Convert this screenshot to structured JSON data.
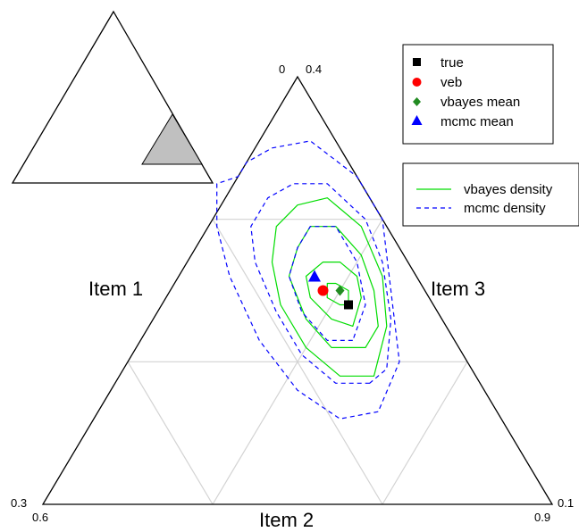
{
  "chart_data": {
    "type": "scatter",
    "subtype": "ternary",
    "axes": {
      "left": {
        "label": "Item 1"
      },
      "bottom": {
        "label": "Item 2"
      },
      "right": {
        "label": "Item 3"
      }
    },
    "corner_labels": {
      "top": [
        "0",
        "0.4"
      ],
      "bottom_left": [
        "0.3",
        "0.6"
      ],
      "bottom_right": [
        "0.1",
        "0.9"
      ]
    },
    "ranges": {
      "item1": [
        0,
        0.3
      ],
      "item2": [
        0.6,
        0.9
      ],
      "item3": [
        0.1,
        0.4
      ]
    },
    "grid": true,
    "points": [
      {
        "name": "true",
        "item1": 0.05,
        "item2": 0.71,
        "item3": 0.24,
        "marker": "square",
        "color": "#000000"
      },
      {
        "name": "veb",
        "item1": 0.06,
        "item2": 0.69,
        "item3": 0.25,
        "marker": "circle",
        "color": "#ff0000"
      },
      {
        "name": "vbayes mean",
        "item1": 0.05,
        "item2": 0.7,
        "item3": 0.25,
        "marker": "diamond",
        "color": "#228b22"
      },
      {
        "name": "mcmc mean",
        "item1": 0.06,
        "item2": 0.68,
        "item3": 0.26,
        "marker": "triangle",
        "color": "#0000ff"
      }
    ],
    "densities": [
      {
        "name": "vbayes density",
        "color": "#00dd00",
        "style": "solid",
        "contours": [
          [
            [
              0.055,
              0.705,
              0.24
            ],
            [
              0.06,
              0.695,
              0.245
            ],
            [
              0.055,
              0.69,
              0.255
            ],
            [
              0.05,
              0.695,
              0.255
            ],
            [
              0.045,
              0.705,
              0.25
            ],
            [
              0.05,
              0.71,
              0.24
            ]
          ],
          [
            [
              0.055,
              0.72,
              0.225
            ],
            [
              0.065,
              0.705,
              0.23
            ],
            [
              0.07,
              0.685,
              0.245
            ],
            [
              0.065,
              0.675,
              0.26
            ],
            [
              0.05,
              0.68,
              0.27
            ],
            [
              0.04,
              0.69,
              0.27
            ],
            [
              0.035,
              0.705,
              0.26
            ],
            [
              0.04,
              0.715,
              0.245
            ]
          ],
          [
            [
              0.055,
              0.735,
              0.21
            ],
            [
              0.075,
              0.715,
              0.21
            ],
            [
              0.08,
              0.69,
              0.23
            ],
            [
              0.075,
              0.665,
              0.26
            ],
            [
              0.06,
              0.66,
              0.28
            ],
            [
              0.045,
              0.66,
              0.295
            ],
            [
              0.03,
              0.675,
              0.295
            ],
            [
              0.025,
              0.7,
              0.275
            ],
            [
              0.03,
              0.72,
              0.25
            ],
            [
              0.04,
              0.735,
              0.225
            ]
          ],
          [
            [
              0.06,
              0.75,
              0.19
            ],
            [
              0.08,
              0.73,
              0.19
            ],
            [
              0.09,
              0.7,
              0.21
            ],
            [
              0.09,
              0.67,
              0.24
            ],
            [
              0.08,
              0.65,
              0.27
            ],
            [
              0.065,
              0.64,
              0.295
            ],
            [
              0.045,
              0.645,
              0.31
            ],
            [
              0.025,
              0.66,
              0.315
            ],
            [
              0.015,
              0.69,
              0.295
            ],
            [
              0.02,
              0.72,
              0.26
            ],
            [
              0.035,
              0.74,
              0.225
            ]
          ]
        ]
      },
      {
        "name": "mcmc density",
        "color": "#0000ff",
        "style": "dashed",
        "contours": [
          [
            [
              0.06,
              0.725,
              0.215
            ],
            [
              0.075,
              0.71,
              0.215
            ],
            [
              0.08,
              0.685,
              0.235
            ],
            [
              0.075,
              0.665,
              0.26
            ],
            [
              0.06,
              0.66,
              0.28
            ],
            [
              0.045,
              0.66,
              0.295
            ],
            [
              0.03,
              0.675,
              0.295
            ],
            [
              0.03,
              0.7,
              0.27
            ],
            [
              0.04,
              0.72,
              0.24
            ]
          ],
          [
            [
              0.065,
              0.75,
              0.185
            ],
            [
              0.085,
              0.73,
              0.185
            ],
            [
              0.095,
              0.7,
              0.205
            ],
            [
              0.095,
              0.67,
              0.235
            ],
            [
              0.09,
              0.64,
              0.27
            ],
            [
              0.08,
              0.625,
              0.295
            ],
            [
              0.06,
              0.625,
              0.315
            ],
            [
              0.04,
              0.635,
              0.325
            ],
            [
              0.02,
              0.655,
              0.325
            ],
            [
              0.01,
              0.69,
              0.3
            ],
            [
              0.015,
              0.715,
              0.27
            ],
            [
              0.03,
              0.74,
              0.23
            ],
            [
              0.05,
              0.755,
              0.195
            ]
          ],
          [
            [
              0.07,
              0.765,
              0.165
            ],
            [
              0.095,
              0.745,
              0.16
            ],
            [
              0.11,
              0.71,
              0.18
            ],
            [
              0.115,
              0.67,
              0.215
            ],
            [
              0.11,
              0.63,
              0.26
            ],
            [
              0.1,
              0.605,
              0.295
            ],
            [
              0.085,
              0.59,
              0.325
            ],
            [
              0.07,
              0.6,
              0.33
            ],
            [
              0.06,
              0.6,
              0.34
            ],
            [
              0.04,
              0.61,
              0.35
            ],
            [
              0.015,
              0.63,
              0.355
            ],
            [
              0.0,
              0.67,
              0.33
            ],
            [
              0.0,
              0.7,
              0.3
            ],
            [
              0.02,
              0.73,
              0.25
            ],
            [
              0.04,
              0.76,
              0.2
            ]
          ]
        ]
      }
    ],
    "legend": {
      "markers": [
        {
          "label": "true",
          "marker": "square",
          "color": "#000000"
        },
        {
          "label": "veb",
          "marker": "circle",
          "color": "#ff0000"
        },
        {
          "label": "vbayes mean",
          "marker": "diamond",
          "color": "#228b22"
        },
        {
          "label": "mcmc mean",
          "marker": "triangle",
          "color": "#0000ff"
        }
      ],
      "lines": [
        {
          "label": "vbayes density",
          "color": "#00dd00",
          "style": "solid"
        },
        {
          "label": "mcmc density",
          "color": "#0000ff",
          "style": "dashed"
        }
      ],
      "placement": "top-right"
    },
    "inset": {
      "description_shape": "full simplex with zoomed subregion shaded",
      "region_color": "#c0c0c0"
    }
  }
}
